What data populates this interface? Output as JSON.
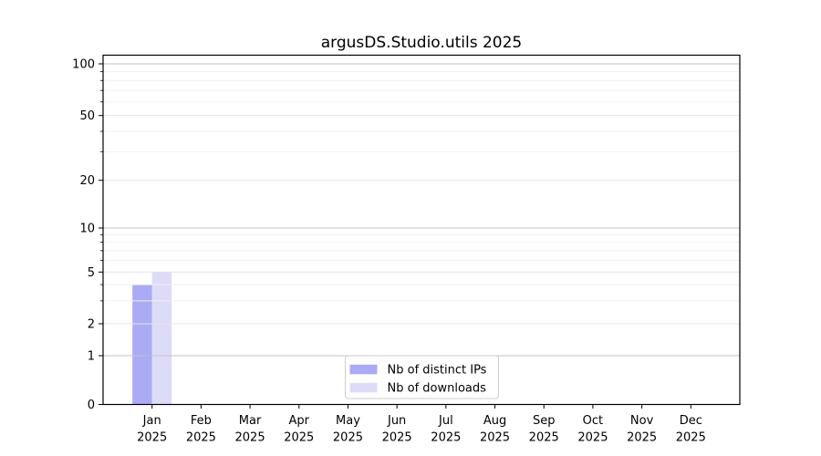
{
  "figure": {
    "background": "#ffffff"
  },
  "chart_data": {
    "type": "bar",
    "title": "argusDS.Studio.utils 2025",
    "categories": [
      "Jan",
      "Feb",
      "Mar",
      "Apr",
      "May",
      "Jun",
      "Jul",
      "Aug",
      "Sep",
      "Oct",
      "Nov",
      "Dec"
    ],
    "category_year": "2025",
    "series": [
      {
        "name": "Nb of distinct IPs",
        "color": "#aaaaf5",
        "values": [
          4,
          0,
          0,
          0,
          0,
          0,
          0,
          0,
          0,
          0,
          0,
          0
        ]
      },
      {
        "name": "Nb of downloads",
        "color": "#dcdcf9",
        "values": [
          5,
          0,
          0,
          0,
          0,
          0,
          0,
          0,
          0,
          0,
          0,
          0
        ]
      }
    ],
    "xlabel": "",
    "ylabel": "",
    "yscale": "symlog",
    "ylim": [
      0,
      113
    ],
    "yticks": [
      0,
      1,
      2,
      5,
      10,
      20,
      50,
      100
    ],
    "yminorticks": [
      3,
      4,
      6,
      7,
      8,
      9,
      30,
      40,
      60,
      70,
      80,
      90
    ],
    "grid": "on",
    "legend": {
      "position": "lower center"
    },
    "colors": {
      "axis": "#000000",
      "text": "#000000",
      "grid_major": "#c3c3c3",
      "grid_mid": "#e4e4e4",
      "grid_minor": "#f1f1f1",
      "legend_border": "#cccccc",
      "legend_bg": "#ffffff"
    }
  }
}
